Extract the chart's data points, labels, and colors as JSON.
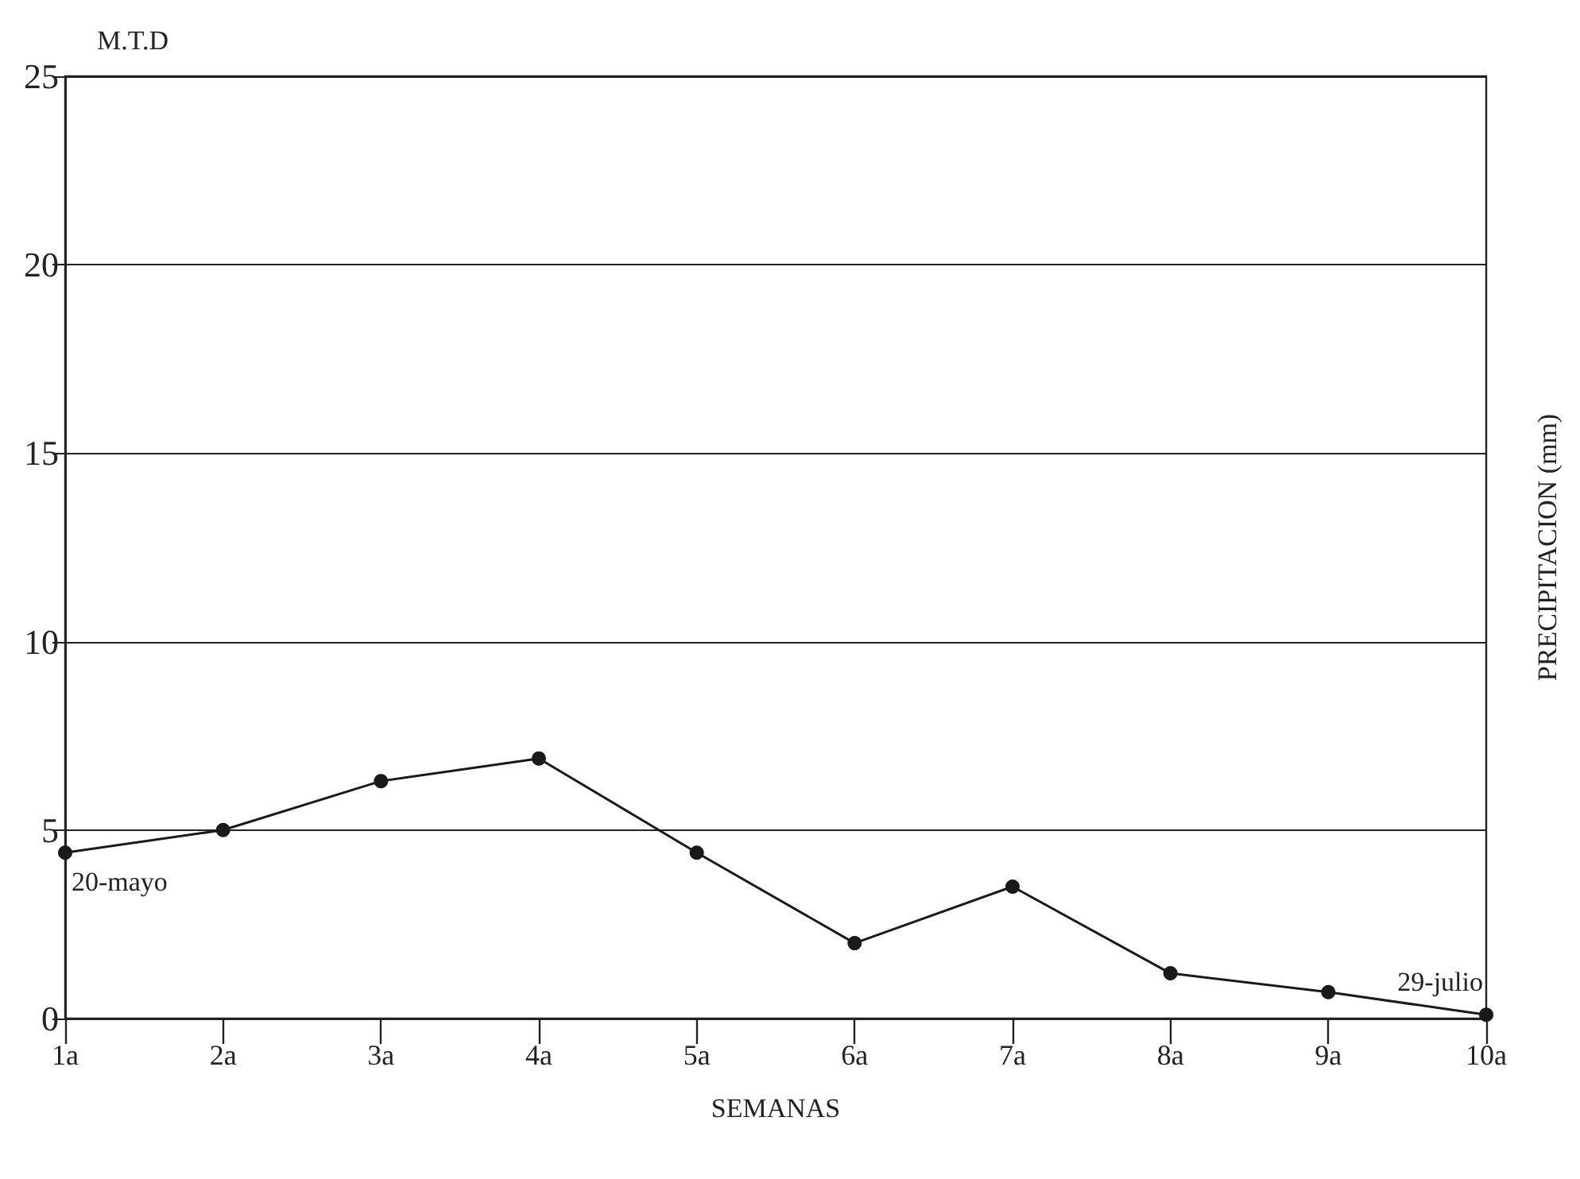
{
  "chart_data": {
    "type": "line",
    "ylabel": "M.T.D",
    "xlabel": "SEMANAS",
    "y2label": "PRECIPITACION (mm)",
    "categories": [
      "1a",
      "2a",
      "3a",
      "4a",
      "5a",
      "6a",
      "7a",
      "8a",
      "9a",
      "10a"
    ],
    "series": [
      {
        "color": "#1a1a1a",
        "values": [
          4.4,
          5.0,
          6.3,
          6.9,
          4.4,
          2.0,
          3.5,
          1.2,
          0.7,
          0.1
        ]
      }
    ],
    "ylim": [
      0,
      25
    ],
    "yticks": [
      0,
      5,
      10,
      15,
      20,
      25
    ],
    "grid": "y",
    "marker": "circle",
    "line_style": "solid",
    "annotations": [
      {
        "text": "20-mayo",
        "x": "1a",
        "y": 4.4
      },
      {
        "text": "29-julio",
        "x": "10a",
        "y": 0.1
      }
    ]
  }
}
